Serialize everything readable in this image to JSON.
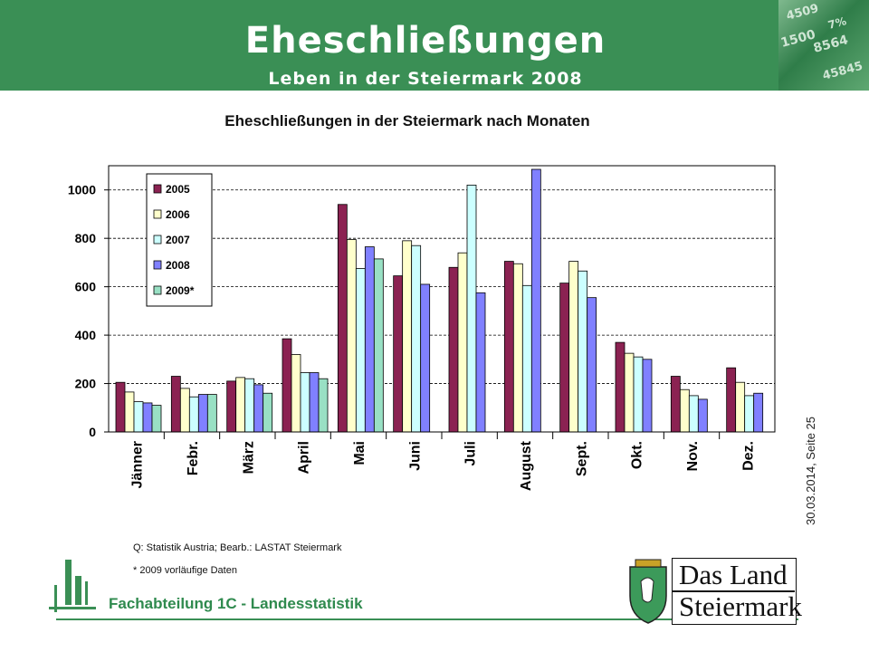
{
  "header": {
    "title": "Eheschließungen",
    "subtitle": "Leben in der Steiermark 2008"
  },
  "footer": {
    "date_page": "30.03.2014, Seite 25",
    "source": "Q: Statistik Austria; Bearb.: LASTAT Steiermark",
    "note": "* 2009 vorläufige Daten",
    "department": "Fachabteilung 1C - Landesstatistik",
    "logo_line1": "Das Land",
    "logo_line2": "Steiermark"
  },
  "colors": {
    "header_green": "#3a8f55",
    "series": [
      "#8b2252",
      "#ffffcc",
      "#ccffff",
      "#8080ff",
      "#99e0c4"
    ]
  },
  "chart_data": {
    "type": "bar",
    "title": "Eheschließungen in der Steiermark nach Monaten",
    "categories": [
      "Jänner",
      "Febr.",
      "März",
      "April",
      "Mai",
      "Juni",
      "Juli",
      "August",
      "Sept.",
      "Okt.",
      "Nov.",
      "Dez."
    ],
    "ylim": [
      0,
      1100
    ],
    "yticks": [
      0,
      200,
      400,
      600,
      800,
      1000
    ],
    "grid": true,
    "legend_position": "top-left",
    "series": [
      {
        "name": "2005",
        "values": [
          205,
          230,
          210,
          385,
          940,
          645,
          680,
          705,
          615,
          370,
          230,
          265
        ]
      },
      {
        "name": "2006",
        "values": [
          165,
          180,
          225,
          320,
          795,
          790,
          740,
          695,
          705,
          325,
          175,
          205
        ]
      },
      {
        "name": "2007",
        "values": [
          125,
          145,
          220,
          245,
          675,
          770,
          1020,
          605,
          665,
          310,
          150,
          150
        ]
      },
      {
        "name": "2008",
        "values": [
          120,
          155,
          195,
          245,
          765,
          610,
          575,
          1085,
          555,
          300,
          135,
          160
        ]
      },
      {
        "name": "2009*",
        "values": [
          110,
          155,
          160,
          220,
          715,
          null,
          null,
          null,
          null,
          null,
          null,
          null
        ]
      }
    ]
  }
}
